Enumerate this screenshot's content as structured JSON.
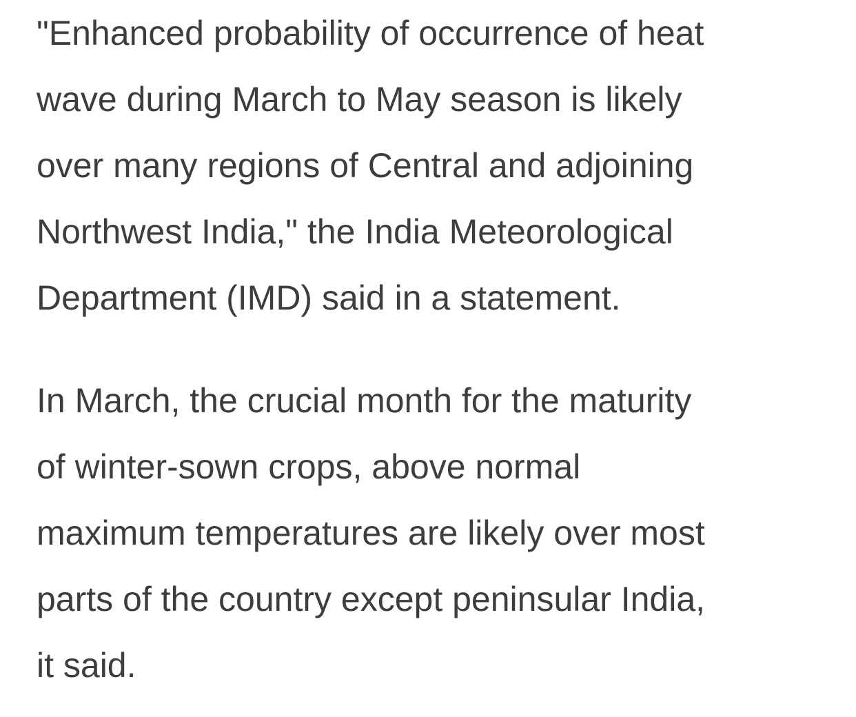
{
  "paragraphs": [
    [
      "\"Enhanced probability of occurrence of heat",
      "wave during March to May season is likely",
      "over many regions of Central and adjoining",
      "Northwest India,\" the India Meteorological",
      "Department (IMD) said in a statement."
    ],
    [
      "In March, the crucial month for the maturity",
      "of winter-sown crops, above normal",
      "maximum temperatures are likely over most",
      "parts of the country except peninsular India,",
      "it said."
    ]
  ]
}
